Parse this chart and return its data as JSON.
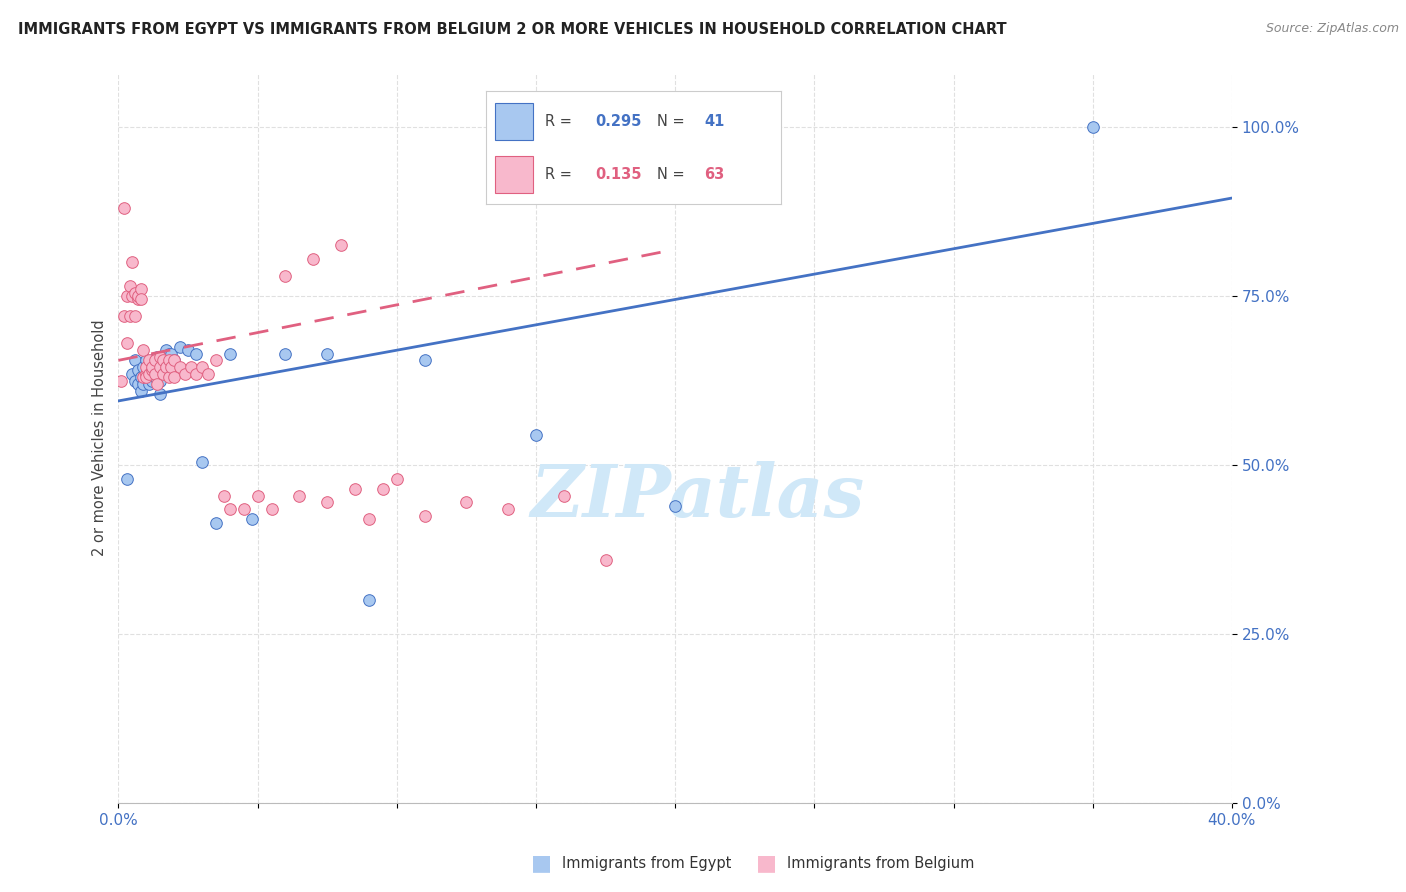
{
  "title": "IMMIGRANTS FROM EGYPT VS IMMIGRANTS FROM BELGIUM 2 OR MORE VEHICLES IN HOUSEHOLD CORRELATION CHART",
  "source": "Source: ZipAtlas.com",
  "ylabel": "2 or more Vehicles in Household",
  "ytick_vals": [
    0.0,
    0.25,
    0.5,
    0.75,
    1.0
  ],
  "ytick_labels": [
    "0.0%",
    "25.0%",
    "50.0%",
    "75.0%",
    "100.0%"
  ],
  "xlim": [
    0.0,
    0.4
  ],
  "ylim": [
    0.0,
    1.08
  ],
  "legend1_R": "0.295",
  "legend1_N": "41",
  "legend2_R": "0.135",
  "legend2_N": "63",
  "egypt_color": "#a8c8f0",
  "belgium_color": "#f8b8cc",
  "egypt_edge_color": "#4472c4",
  "belgium_edge_color": "#e06080",
  "egypt_line_color": "#4472c4",
  "belgium_line_color": "#e06080",
  "watermark_text": "ZIPatlas",
  "watermark_color": "#d0e8f8",
  "tick_color": "#4472c4",
  "title_color": "#222222",
  "source_color": "#888888",
  "ylabel_color": "#444444",
  "grid_color": "#e0e0e0",
  "legend_box_color": "#cccccc",
  "egypt_x": [
    0.003,
    0.005,
    0.006,
    0.006,
    0.007,
    0.007,
    0.008,
    0.008,
    0.009,
    0.009,
    0.01,
    0.01,
    0.011,
    0.011,
    0.012,
    0.012,
    0.013,
    0.013,
    0.014,
    0.014,
    0.015,
    0.015,
    0.016,
    0.017,
    0.018,
    0.019,
    0.02,
    0.022,
    0.025,
    0.028,
    0.03,
    0.035,
    0.04,
    0.048,
    0.06,
    0.075,
    0.09,
    0.11,
    0.15,
    0.2,
    0.35
  ],
  "egypt_y": [
    0.48,
    0.635,
    0.625,
    0.655,
    0.62,
    0.64,
    0.63,
    0.61,
    0.62,
    0.645,
    0.655,
    0.63,
    0.645,
    0.62,
    0.625,
    0.655,
    0.645,
    0.63,
    0.66,
    0.64,
    0.625,
    0.605,
    0.645,
    0.67,
    0.665,
    0.665,
    0.655,
    0.675,
    0.67,
    0.665,
    0.505,
    0.415,
    0.665,
    0.42,
    0.665,
    0.665,
    0.3,
    0.655,
    0.545,
    0.44,
    1.0
  ],
  "belgium_x": [
    0.001,
    0.002,
    0.002,
    0.003,
    0.003,
    0.004,
    0.004,
    0.005,
    0.005,
    0.006,
    0.006,
    0.007,
    0.007,
    0.008,
    0.008,
    0.009,
    0.009,
    0.01,
    0.01,
    0.01,
    0.011,
    0.011,
    0.012,
    0.012,
    0.013,
    0.013,
    0.014,
    0.015,
    0.015,
    0.016,
    0.016,
    0.017,
    0.018,
    0.018,
    0.019,
    0.02,
    0.02,
    0.022,
    0.024,
    0.026,
    0.028,
    0.03,
    0.032,
    0.035,
    0.038,
    0.04,
    0.045,
    0.05,
    0.055,
    0.065,
    0.075,
    0.085,
    0.095,
    0.11,
    0.125,
    0.14,
    0.16,
    0.175,
    0.06,
    0.07,
    0.08,
    0.09,
    0.1
  ],
  "belgium_y": [
    0.625,
    0.88,
    0.72,
    0.75,
    0.68,
    0.72,
    0.765,
    0.75,
    0.8,
    0.72,
    0.755,
    0.745,
    0.75,
    0.76,
    0.745,
    0.63,
    0.67,
    0.635,
    0.63,
    0.645,
    0.655,
    0.635,
    0.64,
    0.645,
    0.655,
    0.635,
    0.62,
    0.66,
    0.645,
    0.655,
    0.635,
    0.645,
    0.63,
    0.655,
    0.645,
    0.63,
    0.655,
    0.645,
    0.635,
    0.645,
    0.635,
    0.645,
    0.635,
    0.655,
    0.455,
    0.435,
    0.435,
    0.455,
    0.435,
    0.455,
    0.445,
    0.465,
    0.465,
    0.425,
    0.445,
    0.435,
    0.455,
    0.36,
    0.78,
    0.805,
    0.825,
    0.42,
    0.48
  ]
}
